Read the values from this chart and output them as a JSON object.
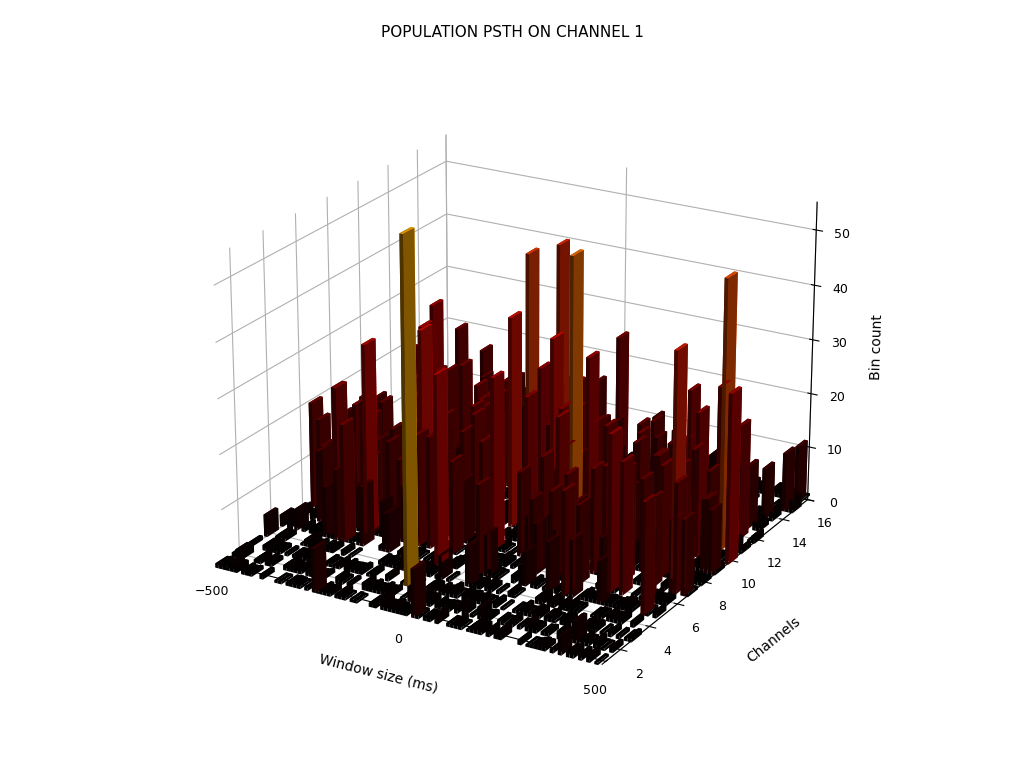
{
  "title": "POPULATION PSTH ON CHANNEL 1",
  "xlabel": "Channels",
  "ylabel": "Window size (ms)",
  "zlabel": "Bin count",
  "n_channels": 16,
  "window_min": -500,
  "window_max": 500,
  "n_bins": 100,
  "zlim": [
    0,
    55
  ],
  "zticks": [
    0,
    10,
    20,
    30,
    40,
    50
  ],
  "channel_ticks": [
    2,
    4,
    6,
    8,
    10,
    12,
    14,
    16
  ],
  "window_ticks": [
    -500,
    0,
    500
  ],
  "background_color": "#ffffff",
  "title_fontsize": 11,
  "label_fontsize": 10,
  "elev": 22,
  "azim": -60,
  "seed": 7777
}
